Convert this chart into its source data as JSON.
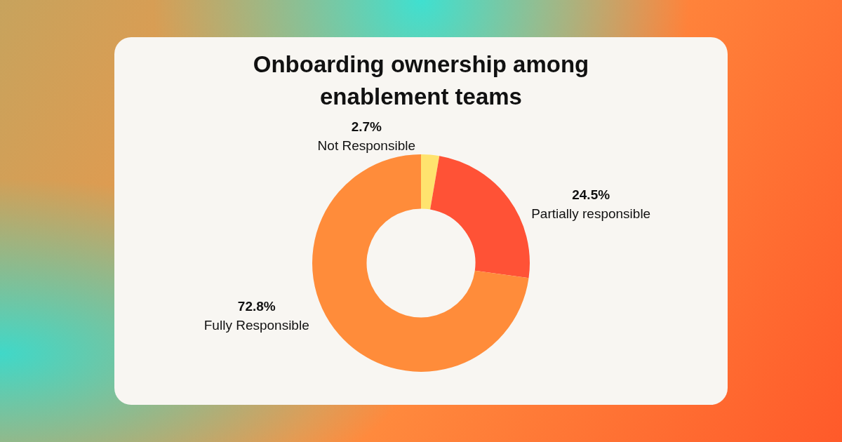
{
  "chart_data": {
    "type": "donut",
    "title": "Onboarding ownership among enablement teams",
    "categories": [
      "Not Responsible",
      "Partially responsible",
      "Fully Responsible"
    ],
    "values": [
      2.7,
      24.5,
      72.8
    ],
    "colors": [
      "#ffe36e",
      "#ff5236",
      "#ff8c3a"
    ],
    "value_labels": [
      "2.7%",
      "24.5%",
      "72.8%"
    ],
    "legend": false
  }
}
